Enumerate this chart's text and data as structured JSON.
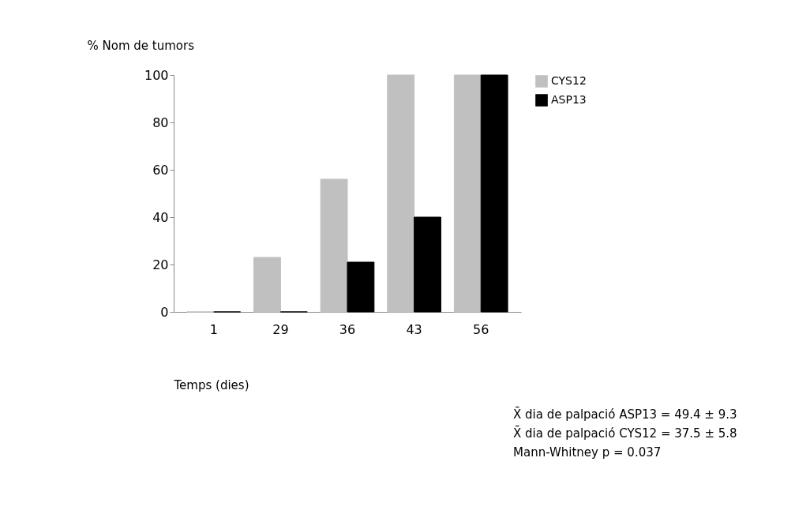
{
  "chart_data": {
    "type": "bar",
    "categories": [
      "1",
      "29",
      "36",
      "43",
      "56"
    ],
    "series": [
      {
        "name": "CYS12",
        "color": "#c0c0c0",
        "values": [
          0,
          23,
          56,
          100,
          100
        ]
      },
      {
        "name": "ASP13",
        "color": "#000000",
        "values": [
          0,
          0,
          21,
          40,
          100
        ]
      }
    ],
    "ylabel": "% Nom de tumors",
    "xlabel": "Temps (dies)",
    "ylim": [
      0,
      100
    ],
    "yticks": [
      0,
      20,
      40,
      60,
      80,
      100
    ],
    "grid": false,
    "legend": "top right",
    "annotations": [
      "X̄ dia de palpació ASP13 = 49.4 ± 9.3",
      "X̄ dia de palpació CYS12 = 37.5 ± 5.8",
      "Mann-Whitney  p = 0.037"
    ]
  }
}
